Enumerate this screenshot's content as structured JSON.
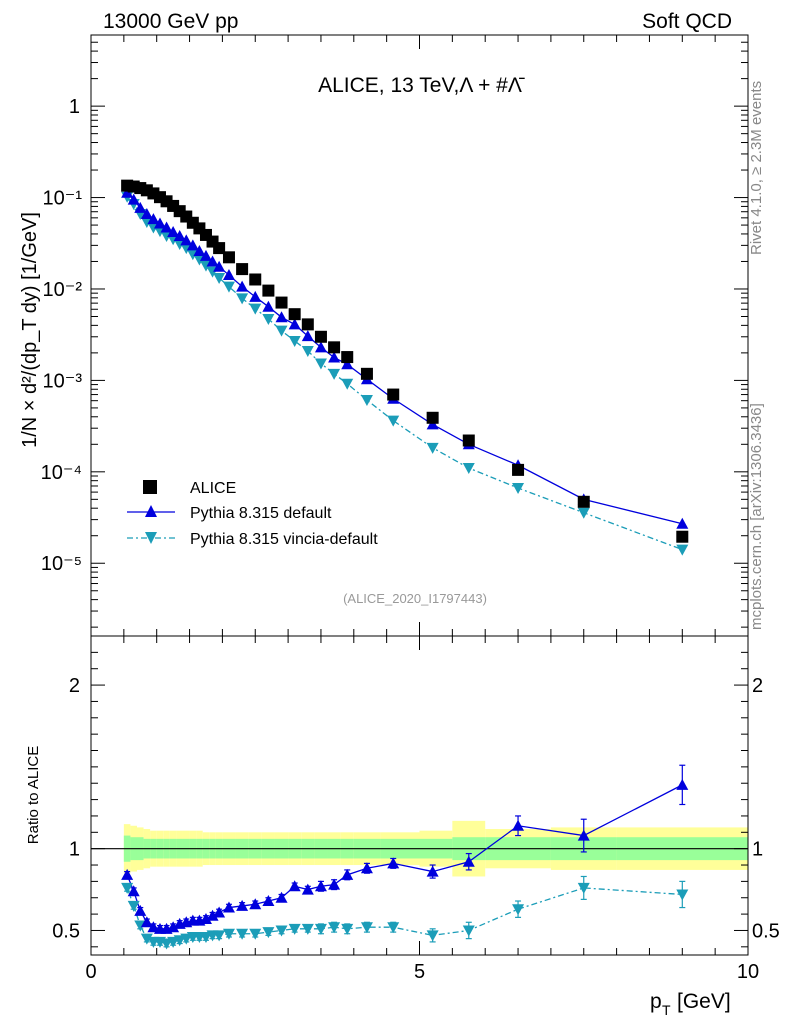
{
  "header": {
    "left": "13000 GeV pp",
    "right": "Soft QCD"
  },
  "side_labels": {
    "rivet": "Rivet 4.1.0, ≥ 2.3M events",
    "mcplots": "mcplots.cern.ch [arXiv:1306.3436]"
  },
  "main_title": "ALICE, 13 TeV,Λ + #Λ̄",
  "analysis_id": "(ALICE_2020_I1797443)",
  "colors": {
    "data": "#000000",
    "default": "#0000dd",
    "vincia": "#1b9db8",
    "band_inner": "#99ff99",
    "band_outer": "#ffff99"
  },
  "chart_data": [
    {
      "type": "scatter",
      "title": "ALICE, 13 TeV,Λ + #Λ̄",
      "xlabel": "p_T [GeV]",
      "ylabel": "1/N × d²/(dp_T dy) [1/GeV]",
      "yscale": "log",
      "xlim": [
        0,
        10
      ],
      "ylim": [
        1.6e-06,
        6
      ],
      "ytick_labels": [
        "10⁻⁵",
        "10⁻⁴",
        "10⁻³",
        "10⁻²",
        "10⁻¹",
        "1"
      ],
      "legend_position": "bottom-left",
      "x": [
        0.55,
        0.65,
        0.75,
        0.85,
        0.95,
        1.05,
        1.15,
        1.25,
        1.35,
        1.45,
        1.55,
        1.65,
        1.75,
        1.85,
        1.95,
        2.1,
        2.3,
        2.5,
        2.7,
        2.9,
        3.1,
        3.3,
        3.5,
        3.7,
        3.9,
        4.2,
        4.6,
        5.2,
        5.75,
        6.5,
        7.5,
        9.0
      ],
      "series": [
        {
          "name": "ALICE",
          "marker": "square",
          "values": [
            0.135,
            0.132,
            0.127,
            0.12,
            0.111,
            0.101,
            0.091,
            0.081,
            0.071,
            0.062,
            0.053,
            0.046,
            0.039,
            0.033,
            0.028,
            0.0222,
            0.0165,
            0.0127,
            0.0096,
            0.0071,
            0.0053,
            0.0041,
            0.003,
            0.0023,
            0.0018,
            0.00118,
            0.0007,
            0.00039,
            0.00022,
            0.000105,
            4.7e-05,
            1.95e-05
          ]
        },
        {
          "name": "Pythia 8.315 default",
          "marker": "triangle-up",
          "line": "solid",
          "values": [
            0.113,
            0.095,
            0.077,
            0.066,
            0.058,
            0.052,
            0.047,
            0.042,
            0.038,
            0.034,
            0.03,
            0.026,
            0.023,
            0.02,
            0.0175,
            0.0142,
            0.0106,
            0.0082,
            0.0064,
            0.0049,
            0.0041,
            0.00305,
            0.0023,
            0.00178,
            0.0015,
            0.00103,
            0.00063,
            0.00033,
            0.0002,
            0.000118,
            5e-05,
            2.7e-05
          ]
        },
        {
          "name": "Pythia 8.315 vincia-default",
          "marker": "triangle-down",
          "line": "dash-dot",
          "values": [
            0.102,
            0.085,
            0.066,
            0.054,
            0.047,
            0.043,
            0.038,
            0.035,
            0.031,
            0.028,
            0.024,
            0.021,
            0.018,
            0.0155,
            0.0132,
            0.0106,
            0.0079,
            0.0061,
            0.0047,
            0.0035,
            0.0027,
            0.0021,
            0.00153,
            0.00118,
            0.00092,
            0.00061,
            0.000363,
            0.000183,
            0.00011,
            6.65e-05,
            3.57e-05,
            1.41e-05
          ]
        }
      ]
    },
    {
      "type": "scatter",
      "title": "",
      "xlabel": "p_T [GeV]",
      "ylabel": "Ratio to ALICE",
      "xlim": [
        0,
        10
      ],
      "ylim": [
        0.35,
        2.3
      ],
      "ytick_labels": [
        "0.5",
        "1",
        "2"
      ],
      "x": [
        0.55,
        0.65,
        0.75,
        0.85,
        0.95,
        1.05,
        1.15,
        1.25,
        1.35,
        1.45,
        1.55,
        1.65,
        1.75,
        1.85,
        1.95,
        2.1,
        2.3,
        2.5,
        2.7,
        2.9,
        3.1,
        3.3,
        3.5,
        3.7,
        3.9,
        4.2,
        4.6,
        5.2,
        5.75,
        6.5,
        7.5,
        9.0
      ],
      "bins": [
        [
          0.5,
          0.6
        ],
        [
          0.6,
          0.7
        ],
        [
          0.7,
          0.8
        ],
        [
          0.8,
          0.9
        ],
        [
          0.9,
          1.0
        ],
        [
          1.0,
          1.1
        ],
        [
          1.1,
          1.2
        ],
        [
          1.2,
          1.3
        ],
        [
          1.3,
          1.4
        ],
        [
          1.4,
          1.5
        ],
        [
          1.5,
          1.6
        ],
        [
          1.6,
          1.7
        ],
        [
          1.7,
          1.8
        ],
        [
          1.8,
          1.9
        ],
        [
          1.9,
          2.0
        ],
        [
          2.0,
          2.2
        ],
        [
          2.2,
          2.4
        ],
        [
          2.4,
          2.6
        ],
        [
          2.6,
          2.8
        ],
        [
          2.8,
          3.0
        ],
        [
          3.0,
          3.2
        ],
        [
          3.2,
          3.4
        ],
        [
          3.4,
          3.6
        ],
        [
          3.6,
          3.8
        ],
        [
          3.8,
          4.0
        ],
        [
          4.0,
          4.4
        ],
        [
          4.4,
          5.0
        ],
        [
          5.0,
          5.5
        ],
        [
          5.5,
          6.0
        ],
        [
          6.0,
          7.0
        ],
        [
          7.0,
          8.0
        ],
        [
          8.0,
          10.0
        ]
      ],
      "band_inner": [
        0.92,
        0.93,
        0.93,
        0.94,
        0.94,
        0.94,
        0.94,
        0.94,
        0.94,
        0.94,
        0.94,
        0.94,
        0.94,
        0.94,
        0.94,
        0.94,
        0.94,
        0.94,
        0.94,
        0.94,
        0.94,
        0.94,
        0.94,
        0.94,
        0.94,
        0.94,
        0.94,
        0.94,
        0.93,
        0.93,
        0.93,
        0.93
      ],
      "band_outer": [
        0.85,
        0.86,
        0.87,
        0.88,
        0.89,
        0.89,
        0.89,
        0.89,
        0.89,
        0.89,
        0.89,
        0.89,
        0.9,
        0.9,
        0.9,
        0.9,
        0.9,
        0.9,
        0.9,
        0.9,
        0.9,
        0.9,
        0.9,
        0.9,
        0.9,
        0.9,
        0.9,
        0.89,
        0.83,
        0.88,
        0.87,
        0.87
      ],
      "series": [
        {
          "name": "Pythia 8.315 default",
          "values": [
            0.84,
            0.74,
            0.62,
            0.55,
            0.52,
            0.51,
            0.51,
            0.52,
            0.54,
            0.55,
            0.56,
            0.56,
            0.57,
            0.59,
            0.61,
            0.64,
            0.65,
            0.66,
            0.68,
            0.7,
            0.77,
            0.75,
            0.77,
            0.78,
            0.84,
            0.88,
            0.91,
            0.86,
            0.92,
            1.14,
            1.08,
            1.39
          ],
          "errors": [
            0.02,
            0.02,
            0.02,
            0.02,
            0.02,
            0.02,
            0.02,
            0.02,
            0.02,
            0.02,
            0.02,
            0.02,
            0.02,
            0.02,
            0.02,
            0.02,
            0.02,
            0.02,
            0.02,
            0.02,
            0.02,
            0.02,
            0.03,
            0.03,
            0.03,
            0.03,
            0.03,
            0.04,
            0.05,
            0.06,
            0.1,
            0.12
          ]
        },
        {
          "name": "Pythia 8.315 vincia-default",
          "values": [
            0.76,
            0.65,
            0.53,
            0.45,
            0.43,
            0.43,
            0.42,
            0.43,
            0.44,
            0.45,
            0.46,
            0.46,
            0.46,
            0.47,
            0.47,
            0.48,
            0.48,
            0.48,
            0.49,
            0.5,
            0.51,
            0.51,
            0.51,
            0.52,
            0.51,
            0.52,
            0.52,
            0.47,
            0.5,
            0.63,
            0.76,
            0.72
          ],
          "errors": [
            0.02,
            0.02,
            0.02,
            0.02,
            0.02,
            0.02,
            0.02,
            0.02,
            0.02,
            0.02,
            0.02,
            0.02,
            0.02,
            0.02,
            0.02,
            0.02,
            0.02,
            0.02,
            0.02,
            0.02,
            0.02,
            0.02,
            0.03,
            0.03,
            0.03,
            0.03,
            0.03,
            0.04,
            0.05,
            0.05,
            0.07,
            0.08
          ]
        }
      ]
    }
  ],
  "tick_labels": {
    "x": [
      "0",
      "5",
      "10"
    ],
    "x_values": [
      0,
      5,
      10
    ]
  }
}
